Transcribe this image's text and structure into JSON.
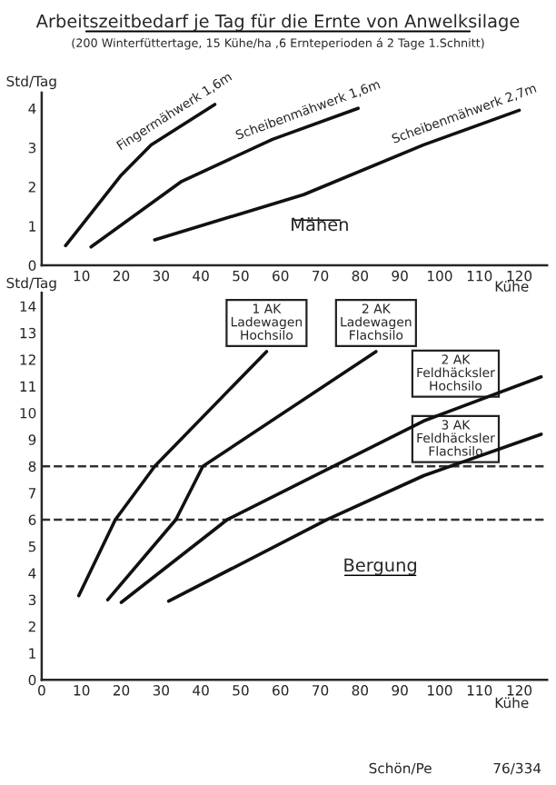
{
  "chart_data": [
    {
      "type": "line",
      "title": "Arbeitszeitbedarf je Tag für die Ernte von Anwelksilage",
      "subtitle": "(200 Winterfüttertage, 15 Kühe/ha ,6 Ernteperioden á 2 Tage 1.Schnitt)",
      "xlabel": "Kühe",
      "ylabel": "Std/Tag",
      "xlim": [
        0,
        127
      ],
      "ylim": [
        0,
        4.4
      ],
      "xticks": [
        10,
        20,
        30,
        40,
        50,
        60,
        70,
        80,
        90,
        100,
        110,
        120
      ],
      "yticks": [
        0,
        1,
        2,
        3,
        4
      ],
      "grid": false,
      "legend": false,
      "marker": "none",
      "line_style": "solid",
      "annotations": [
        "Mähen"
      ],
      "series": [
        {
          "name": "Fingermähwerk 1,6m",
          "color": "#111111",
          "x": [
            6,
            20,
            27.5,
            43.5
          ],
          "values": [
            0.5,
            2.3,
            3.07,
            4.1
          ]
        },
        {
          "name": "Scheibenmähwerk 1,6m",
          "color": "#111111",
          "x": [
            12.4,
            35.2,
            58,
            79.5
          ],
          "values": [
            0.47,
            2.14,
            3.21,
            4.0
          ]
        },
        {
          "name": "Scheibenmähwerk 2,7m",
          "color": "#111111",
          "x": [
            28.4,
            65.8,
            96,
            120
          ],
          "values": [
            0.65,
            1.8,
            3.07,
            3.95
          ]
        }
      ]
    },
    {
      "type": "line",
      "xlabel": "Kühe",
      "ylabel": "Std/Tag",
      "xlim": [
        0,
        127
      ],
      "ylim": [
        0,
        14.5
      ],
      "xticks": [
        0,
        10,
        20,
        30,
        40,
        50,
        60,
        70,
        80,
        90,
        100,
        110,
        120
      ],
      "yticks": [
        0,
        1,
        2,
        3,
        4,
        5,
        6,
        7,
        8,
        9,
        10,
        11,
        12,
        13,
        14
      ],
      "grid": false,
      "legend": false,
      "marker": "none",
      "line_style": "solid",
      "annotations": [
        "Bergung",
        "Schön/Pe",
        "76/334"
      ],
      "ref_lines": [
        {
          "axis": "y",
          "value": 6,
          "line_style": "dashed",
          "color": "#333333"
        },
        {
          "axis": "y",
          "value": 8,
          "line_style": "dashed",
          "color": "#333333"
        }
      ],
      "series": [
        {
          "name": "1 AK\nLadewagen\nHochsilo",
          "color": "#111111",
          "x": [
            9.3,
            18.5,
            28.4,
            56.5
          ],
          "values": [
            3.15,
            6.0,
            8.0,
            12.3
          ]
        },
        {
          "name": "2 AK\nLadewagen\nFlachsilo",
          "color": "#111111",
          "x": [
            16.6,
            33.7,
            40.5,
            84
          ],
          "values": [
            3.0,
            6.0,
            8.0,
            12.3
          ]
        },
        {
          "name": "2 AK\nFeldhäcksler\nHochsilo",
          "color": "#111111",
          "x": [
            20,
            46.6,
            96,
            125.5
          ],
          "values": [
            2.9,
            6.0,
            9.7,
            11.35
          ]
        },
        {
          "name": "3 AK\nFeldhäcksler\nFlachsilo",
          "color": "#111111",
          "x": [
            31.9,
            71.7,
            96,
            125.5
          ],
          "values": [
            2.95,
            6.0,
            7.65,
            9.2
          ]
        }
      ]
    }
  ]
}
